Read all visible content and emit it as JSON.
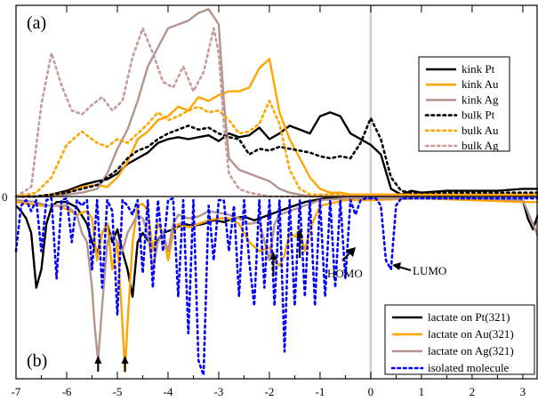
{
  "chart_data": [
    {
      "type": "line",
      "panel_label": "(a)",
      "xlim": [
        -7,
        3.3
      ],
      "ylim": [
        0,
        1.0
      ],
      "grid": false,
      "vertical_reference_x": 0,
      "y_tick_labels": [
        {
          "value": 0,
          "label": "0"
        }
      ],
      "legend_position": "right",
      "series": [
        {
          "name": "kink Pt",
          "color": "#000000",
          "dash": "solid",
          "x": [
            -7.0,
            -6.6,
            -6.3,
            -6.0,
            -5.7,
            -5.4,
            -5.2,
            -5.0,
            -4.8,
            -4.6,
            -4.4,
            -4.2,
            -4.0,
            -3.8,
            -3.6,
            -3.4,
            -3.2,
            -3.0,
            -2.8,
            -2.6,
            -2.4,
            -2.2,
            -2.0,
            -1.8,
            -1.6,
            -1.4,
            -1.2,
            -1.0,
            -0.8,
            -0.6,
            -0.4,
            -0.2,
            0.0,
            0.2,
            0.4,
            0.6,
            0.8,
            1.0,
            1.5,
            2.0,
            2.5,
            3.0,
            3.3
          ],
          "y": [
            0.0,
            0.0,
            0.01,
            0.03,
            0.06,
            0.08,
            0.09,
            0.12,
            0.17,
            0.2,
            0.23,
            0.28,
            0.3,
            0.31,
            0.3,
            0.31,
            0.32,
            0.29,
            0.33,
            0.31,
            0.32,
            0.36,
            0.3,
            0.33,
            0.37,
            0.35,
            0.33,
            0.42,
            0.44,
            0.42,
            0.33,
            0.3,
            0.27,
            0.22,
            0.04,
            0.01,
            0.03,
            0.02,
            0.03,
            0.03,
            0.03,
            0.04,
            0.04
          ]
        },
        {
          "name": "kink Au",
          "color": "#ffa500",
          "dash": "solid",
          "x": [
            -7.0,
            -6.6,
            -6.3,
            -6.0,
            -5.7,
            -5.4,
            -5.2,
            -5.0,
            -4.8,
            -4.6,
            -4.4,
            -4.2,
            -4.0,
            -3.8,
            -3.6,
            -3.4,
            -3.2,
            -3.0,
            -2.8,
            -2.6,
            -2.4,
            -2.2,
            -2.0,
            -1.8,
            -1.6,
            -1.4,
            -1.2,
            -1.0,
            -0.8,
            -0.6,
            -0.4,
            -0.2,
            0.0,
            0.5,
            1.0,
            2.0,
            3.0,
            3.3
          ],
          "y": [
            0.0,
            0.0,
            0.01,
            0.02,
            0.05,
            0.06,
            0.05,
            0.1,
            0.18,
            0.3,
            0.34,
            0.4,
            0.42,
            0.47,
            0.45,
            0.52,
            0.5,
            0.53,
            0.55,
            0.55,
            0.57,
            0.67,
            0.72,
            0.44,
            0.3,
            0.2,
            0.1,
            0.04,
            0.02,
            0.02,
            0.01,
            0.01,
            0.01,
            0.01,
            0.01,
            0.01,
            0.01,
            0.01
          ]
        },
        {
          "name": "kink Ag",
          "color": "#b4948f",
          "dash": "solid",
          "x": [
            -7.0,
            -6.6,
            -6.3,
            -6.0,
            -5.7,
            -5.4,
            -5.2,
            -5.0,
            -4.8,
            -4.6,
            -4.4,
            -4.2,
            -4.0,
            -3.8,
            -3.6,
            -3.4,
            -3.2,
            -3.0,
            -2.9,
            -2.8,
            -2.6,
            -2.4,
            -2.2,
            -2.0,
            -1.8,
            -1.6,
            -1.4,
            -1.2,
            -1.0,
            -0.5,
            0.0,
            0.5,
            1.0,
            2.0,
            3.0,
            3.3
          ],
          "y": [
            0.0,
            0.0,
            0.0,
            0.01,
            0.02,
            0.04,
            0.12,
            0.25,
            0.35,
            0.5,
            0.68,
            0.78,
            0.88,
            0.9,
            0.92,
            0.96,
            0.98,
            0.9,
            0.5,
            0.2,
            0.14,
            0.12,
            0.1,
            0.08,
            0.04,
            0.02,
            0.01,
            0.0,
            0.0,
            0.0,
            0.0,
            0.0,
            0.0,
            0.0,
            0.0,
            0.0
          ]
        },
        {
          "name": "bulk Pt",
          "color": "#000000",
          "dash": "dotted",
          "x": [
            -7.0,
            -6.6,
            -6.3,
            -6.0,
            -5.7,
            -5.4,
            -5.2,
            -5.0,
            -4.8,
            -4.6,
            -4.4,
            -4.2,
            -4.0,
            -3.8,
            -3.6,
            -3.4,
            -3.2,
            -3.0,
            -2.8,
            -2.6,
            -2.4,
            -2.2,
            -2.0,
            -1.8,
            -1.6,
            -1.4,
            -1.2,
            -1.0,
            -0.8,
            -0.6,
            -0.4,
            -0.2,
            0.0,
            0.2,
            0.4,
            0.6,
            0.8,
            1.0,
            2.0,
            3.0,
            3.3
          ],
          "y": [
            0.0,
            0.0,
            0.01,
            0.02,
            0.04,
            0.06,
            0.1,
            0.14,
            0.2,
            0.24,
            0.26,
            0.3,
            0.33,
            0.35,
            0.37,
            0.35,
            0.36,
            0.33,
            0.31,
            0.3,
            0.22,
            0.25,
            0.24,
            0.26,
            0.25,
            0.24,
            0.23,
            0.21,
            0.2,
            0.21,
            0.2,
            0.28,
            0.41,
            0.3,
            0.1,
            0.03,
            0.02,
            0.02,
            0.02,
            0.02,
            0.02
          ]
        },
        {
          "name": "bulk Au",
          "color": "#ffa500",
          "dash": "dotted",
          "x": [
            -7.0,
            -6.6,
            -6.3,
            -6.0,
            -5.7,
            -5.4,
            -5.2,
            -5.0,
            -4.8,
            -4.6,
            -4.4,
            -4.2,
            -4.0,
            -3.8,
            -3.6,
            -3.4,
            -3.2,
            -3.0,
            -2.8,
            -2.6,
            -2.4,
            -2.2,
            -2.0,
            -1.8,
            -1.6,
            -1.4,
            -1.2,
            -1.0,
            0.0,
            1.0,
            2.0,
            3.0,
            3.3
          ],
          "y": [
            0.0,
            0.02,
            0.1,
            0.27,
            0.34,
            0.28,
            0.26,
            0.3,
            0.28,
            0.33,
            0.38,
            0.44,
            0.4,
            0.42,
            0.45,
            0.47,
            0.44,
            0.45,
            0.4,
            0.33,
            0.34,
            0.38,
            0.5,
            0.38,
            0.14,
            0.04,
            0.01,
            0.01,
            0.01,
            0.01,
            0.01,
            0.01,
            0.01
          ]
        },
        {
          "name": "bulk Ag",
          "color": "#c79b9b",
          "dash": "dotted",
          "x": [
            -7.0,
            -6.7,
            -6.5,
            -6.3,
            -6.1,
            -5.9,
            -5.7,
            -5.5,
            -5.3,
            -5.1,
            -4.9,
            -4.7,
            -4.5,
            -4.3,
            -4.1,
            -3.9,
            -3.7,
            -3.5,
            -3.3,
            -3.1,
            -3.0,
            -2.9,
            -2.8,
            -2.6,
            -2.4,
            -2.2,
            -2.0,
            -1.0,
            0.0,
            1.0,
            2.0,
            3.0,
            3.3
          ],
          "y": [
            0.0,
            0.05,
            0.48,
            0.75,
            0.58,
            0.45,
            0.43,
            0.48,
            0.52,
            0.45,
            0.5,
            0.73,
            0.88,
            0.75,
            0.6,
            0.57,
            0.68,
            0.55,
            0.65,
            0.88,
            0.75,
            0.38,
            0.12,
            0.04,
            0.02,
            0.01,
            0.0,
            0.0,
            0.0,
            0.0,
            0.0,
            0.0,
            0.0
          ]
        }
      ]
    },
    {
      "type": "line",
      "panel_label": "(b)",
      "xlim": [
        -7,
        3.3
      ],
      "ylim": [
        -1.0,
        0
      ],
      "grid": false,
      "vertical_reference_x": 0,
      "x_tick_labels": [
        "-7",
        "-6",
        "-5",
        "-4",
        "-3",
        "-2",
        "-1",
        "0",
        "1",
        "2",
        "3"
      ],
      "legend_position": "bottom-right",
      "annotations": [
        {
          "text": "HOMO",
          "x": -0.35,
          "y": -0.5
        },
        {
          "text": "LUMO",
          "x": 0.9,
          "y": -0.4
        }
      ],
      "arrows_at_x": [
        -5.38,
        -4.85,
        -1.92,
        -1.4,
        -0.35,
        0.45
      ],
      "series": [
        {
          "name": "lactate on Pt(321)",
          "color": "#000000",
          "dash": "solid",
          "x": [
            -7.0,
            -6.9,
            -6.8,
            -6.7,
            -6.6,
            -6.5,
            -6.4,
            -6.3,
            -6.2,
            -6.0,
            -5.8,
            -5.6,
            -5.5,
            -5.4,
            -5.3,
            -5.2,
            -5.1,
            -5.0,
            -4.9,
            -4.8,
            -4.7,
            -4.6,
            -4.5,
            -4.3,
            -4.1,
            -3.9,
            -3.7,
            -3.5,
            -3.3,
            -3.1,
            -2.9,
            -2.7,
            -2.5,
            -2.3,
            -2.1,
            -1.9,
            -1.7,
            -1.5,
            -1.3,
            -1.1,
            -0.9,
            -0.5,
            0.0,
            1.0,
            2.0,
            3.0,
            3.1,
            3.2,
            3.3
          ],
          "y": [
            -0.05,
            -0.08,
            -0.12,
            -0.2,
            -0.5,
            -0.4,
            -0.15,
            -0.06,
            -0.03,
            -0.03,
            -0.06,
            -0.15,
            -0.25,
            -0.32,
            -0.2,
            -0.15,
            -0.25,
            -0.18,
            -0.3,
            -0.4,
            -0.55,
            -0.25,
            -0.2,
            -0.28,
            -0.2,
            -0.18,
            -0.15,
            -0.16,
            -0.15,
            -0.13,
            -0.14,
            -0.12,
            -0.11,
            -0.13,
            -0.11,
            -0.09,
            -0.07,
            -0.05,
            -0.03,
            -0.02,
            -0.01,
            -0.01,
            -0.01,
            -0.01,
            -0.01,
            -0.02,
            -0.12,
            -0.18,
            -0.1
          ]
        },
        {
          "name": "lactate on Au(321)",
          "color": "#ffa500",
          "dash": "solid",
          "x": [
            -7.0,
            -6.5,
            -6.2,
            -6.0,
            -5.8,
            -5.6,
            -5.5,
            -5.4,
            -5.3,
            -5.2,
            -5.1,
            -5.0,
            -4.9,
            -4.85,
            -4.8,
            -4.7,
            -4.6,
            -4.5,
            -4.4,
            -4.3,
            -4.2,
            -4.1,
            -4.0,
            -3.9,
            -3.8,
            -3.6,
            -3.4,
            -3.2,
            -3.0,
            -2.8,
            -2.6,
            -2.4,
            -2.2,
            -2.0,
            -1.9,
            -1.8,
            -1.7,
            -1.6,
            -1.5,
            -1.4,
            -1.3,
            -1.2,
            -1.0,
            -0.5,
            0.0,
            1.0,
            2.0,
            3.0,
            3.3
          ],
          "y": [
            -0.03,
            -0.05,
            -0.05,
            -0.07,
            -0.1,
            -0.08,
            -0.12,
            -0.35,
            -0.2,
            -0.15,
            -0.4,
            -0.25,
            -0.7,
            -0.96,
            -0.7,
            -0.25,
            -0.05,
            -0.04,
            -0.08,
            -0.3,
            -0.15,
            -0.2,
            -0.35,
            -0.2,
            -0.15,
            -0.17,
            -0.15,
            -0.13,
            -0.12,
            -0.12,
            -0.15,
            -0.25,
            -0.3,
            -0.28,
            -0.35,
            -0.38,
            -0.32,
            -0.2,
            -0.22,
            -0.18,
            -0.3,
            -0.18,
            -0.05,
            -0.02,
            -0.02,
            -0.01,
            -0.02,
            -0.03,
            -0.03
          ]
        },
        {
          "name": "lactate on Ag(321)",
          "color": "#b4948f",
          "dash": "solid",
          "x": [
            -7.0,
            -6.6,
            -6.4,
            -6.2,
            -6.0,
            -5.8,
            -5.7,
            -5.6,
            -5.5,
            -5.45,
            -5.4,
            -5.38,
            -5.3,
            -5.2,
            -5.1,
            -5.0,
            -4.9,
            -4.8,
            -4.7,
            -4.6,
            -4.5,
            -4.4,
            -4.3,
            -4.2,
            -4.1,
            -4.0,
            -3.9,
            -3.8,
            -3.6,
            -3.4,
            -3.2,
            -3.0,
            -2.8,
            -2.6,
            -2.4,
            -2.2,
            -2.0,
            -1.9,
            -1.8,
            -1.6,
            -1.4,
            -1.2,
            -1.0,
            -0.5,
            0.0,
            1.0,
            2.0,
            3.0,
            3.2,
            3.3
          ],
          "y": [
            -0.02,
            -0.03,
            -0.05,
            -0.05,
            -0.05,
            -0.1,
            -0.2,
            -0.25,
            -0.5,
            -0.7,
            -0.85,
            -0.9,
            -0.6,
            -0.25,
            -0.2,
            -0.25,
            -0.3,
            -0.2,
            -0.15,
            -0.1,
            -0.12,
            -0.2,
            -0.4,
            -0.25,
            -0.2,
            -0.3,
            -0.15,
            -0.1,
            -0.12,
            -0.11,
            -0.08,
            -0.09,
            -0.1,
            -0.12,
            -0.15,
            -0.14,
            -0.35,
            -0.15,
            -0.1,
            -0.08,
            -0.06,
            -0.04,
            -0.02,
            -0.01,
            -0.01,
            -0.01,
            -0.01,
            -0.02,
            -0.15,
            -0.22
          ]
        },
        {
          "name": "isolated molecule",
          "color": "#0000ff",
          "dash": "dotted",
          "x": [
            -7.0,
            -6.9,
            -6.8,
            -6.7,
            -6.6,
            -6.5,
            -6.4,
            -6.3,
            -6.2,
            -6.1,
            -6.0,
            -5.9,
            -5.8,
            -5.7,
            -5.6,
            -5.5,
            -5.4,
            -5.3,
            -5.2,
            -5.1,
            -5.0,
            -4.9,
            -4.8,
            -4.7,
            -4.6,
            -4.5,
            -4.4,
            -4.3,
            -4.2,
            -4.1,
            -4.0,
            -3.9,
            -3.8,
            -3.7,
            -3.6,
            -3.5,
            -3.4,
            -3.3,
            -3.2,
            -3.1,
            -3.0,
            -2.9,
            -2.8,
            -2.7,
            -2.6,
            -2.5,
            -2.4,
            -2.3,
            -2.2,
            -2.1,
            -2.0,
            -1.9,
            -1.8,
            -1.7,
            -1.6,
            -1.5,
            -1.4,
            -1.3,
            -1.2,
            -1.1,
            -1.0,
            -0.9,
            -0.8,
            -0.7,
            -0.6,
            -0.5,
            -0.4,
            -0.3,
            -0.2,
            -0.1,
            0.0,
            0.1,
            0.2,
            0.3,
            0.4,
            0.5,
            0.6,
            0.8,
            1.0,
            2.0,
            3.0,
            3.3
          ],
          "y": [
            -0.3,
            -0.05,
            -0.02,
            -0.08,
            -0.02,
            -0.3,
            -0.02,
            -0.01,
            -0.45,
            -0.02,
            -0.01,
            -0.25,
            -0.02,
            -0.05,
            -0.02,
            -0.4,
            -0.02,
            -0.5,
            -0.02,
            -0.08,
            -0.65,
            -0.02,
            -0.05,
            -0.1,
            -0.02,
            -0.42,
            -0.02,
            -0.5,
            -0.02,
            -0.3,
            -0.02,
            -0.01,
            -0.55,
            -0.02,
            -0.75,
            -0.02,
            -0.9,
            -0.98,
            -0.05,
            -0.35,
            -0.02,
            -0.02,
            -0.3,
            -0.05,
            -0.55,
            -0.02,
            -0.35,
            -0.6,
            -0.02,
            -0.5,
            -0.02,
            -0.6,
            -0.02,
            -0.85,
            -0.02,
            -0.6,
            -0.02,
            -0.55,
            -0.02,
            -0.6,
            -0.02,
            -0.55,
            -0.02,
            -0.5,
            -0.02,
            -0.45,
            -0.02,
            -0.1,
            -0.02,
            -0.01,
            -0.01,
            -0.01,
            -0.05,
            -0.35,
            -0.4,
            -0.05,
            -0.01,
            -0.01,
            -0.01,
            -0.01,
            -0.01,
            -0.01
          ]
        }
      ]
    }
  ]
}
